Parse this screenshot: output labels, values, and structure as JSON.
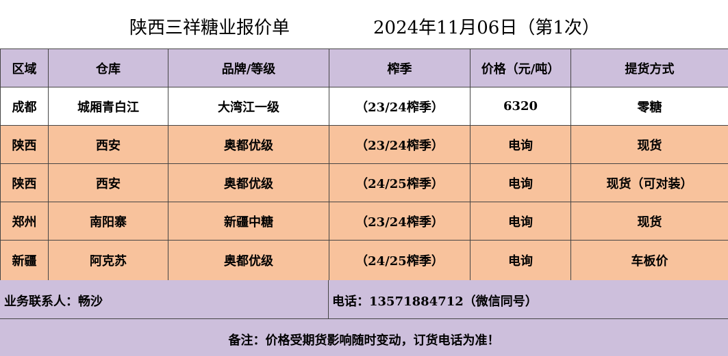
{
  "title": {
    "main": "陕西三祥糖业报价单",
    "date": "2024年11月06日（第1次）"
  },
  "table": {
    "headers": [
      "区域",
      "仓库",
      "品牌/等级",
      "榨季",
      "价格（元/吨）",
      "提货方式"
    ],
    "rows": [
      [
        "成都",
        "城厢青白江",
        "大湾江一级",
        "（23/24榨季）",
        "6320",
        "零糖"
      ],
      [
        "陕西",
        "西安",
        "奥都优级",
        "（23/24榨季）",
        "电询",
        "现货"
      ],
      [
        "陕西",
        "西安",
        "奥都优级",
        "（24/25榨季）",
        "电询",
        "现货（可对装）"
      ],
      [
        "郑州",
        "南阳寨",
        "新疆中糖",
        "（23/24榨季）",
        "电询",
        "现货"
      ],
      [
        "新疆",
        "阿克苏",
        "奥都优级",
        "（24/25榨季）",
        "电询",
        "车板价"
      ]
    ]
  },
  "contact": {
    "person": "业务联系人：畅沙",
    "phone": "电话：13571884712（微信同号）"
  },
  "note": "备注：价格受期货影响随时变动，订货电话为准！",
  "colors": {
    "header_bg": "#cdbfdc",
    "row_highlight": "#f8c29c",
    "row_plain": "#ffffff"
  }
}
